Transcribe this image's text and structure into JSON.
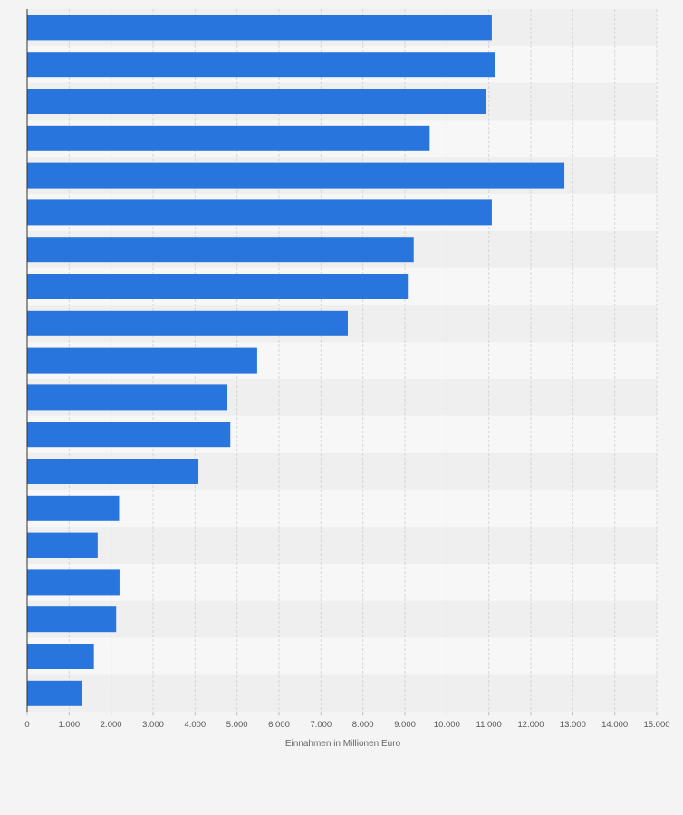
{
  "chart_data": {
    "type": "bar",
    "orientation": "horizontal",
    "title": "",
    "xlabel": "Einnahmen in Millionen Euro",
    "ylabel": "",
    "xlim": [
      0,
      15000
    ],
    "tick_values": [
      0,
      1000,
      2000,
      3000,
      4000,
      5000,
      6000,
      7000,
      8000,
      9000,
      10000,
      11000,
      12000,
      13000,
      14000,
      15000
    ],
    "tick_labels": [
      "0",
      "1.000",
      "2.000",
      "3.000",
      "4.000",
      "5.000",
      "6.000",
      "7.000",
      "8.000",
      "9.000",
      "10.000",
      "11.000",
      "12.000",
      "13.000",
      "14.000",
      "15.000"
    ],
    "values": [
      11070,
      11150,
      10940,
      9590,
      12800,
      11070,
      9210,
      9070,
      7640,
      5480,
      4770,
      4840,
      4080,
      2190,
      1680,
      2200,
      2120,
      1590,
      1300
    ],
    "grid": true,
    "legend": "none",
    "colors": {
      "bar": "#2876dd",
      "band_dark": "#efefef",
      "band_light": "#f7f7f7",
      "grid": "#d6d6d6",
      "axis": "#333333",
      "background": "#f4f4f4"
    }
  }
}
